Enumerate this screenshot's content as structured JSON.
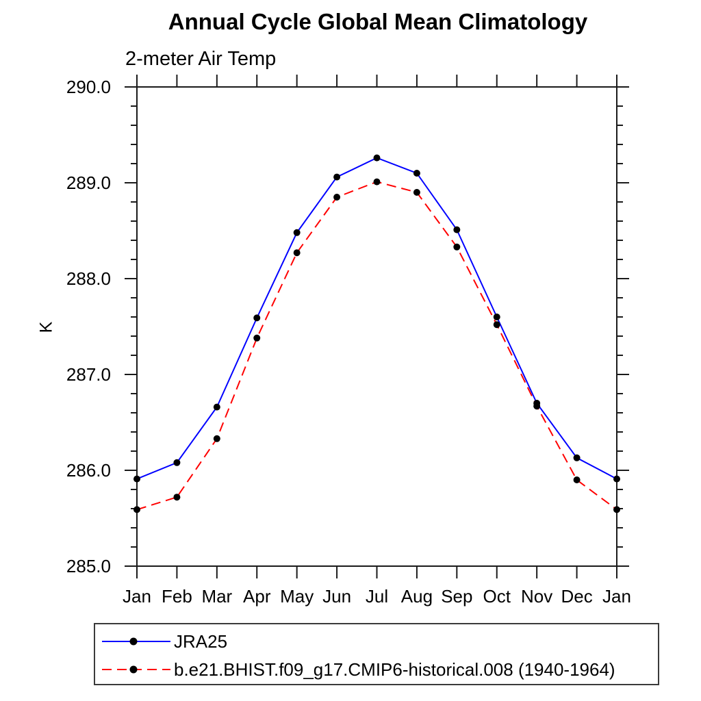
{
  "accent_colors": {
    "series1": "#0000ff",
    "series2": "#ff0000",
    "marker": "#000000",
    "axis": "#1a1a1a"
  },
  "chart_data": {
    "type": "line",
    "title": "Annual Cycle Global Mean Climatology",
    "subtitle": "2-meter Air Temp",
    "xlabel": "",
    "ylabel": "K",
    "categories": [
      "Jan",
      "Feb",
      "Mar",
      "Apr",
      "May",
      "Jun",
      "Jul",
      "Aug",
      "Sep",
      "Oct",
      "Nov",
      "Dec",
      "Jan"
    ],
    "ylim": [
      285.0,
      290.0
    ],
    "ytick_major_step": 1.0,
    "ytick_minor_step": 0.2,
    "ytick_labels": [
      "290.0",
      "289.0",
      "288.0",
      "287.0",
      "286.0",
      "285.0"
    ],
    "grid": false,
    "tick_direction": "out",
    "legend_position": "bottom-left",
    "series": [
      {
        "name": "JRA25",
        "color": "#0000ff",
        "style": "solid",
        "marker": "circle",
        "marker_color": "#000000",
        "values": [
          285.91,
          286.08,
          286.66,
          287.59,
          288.48,
          289.06,
          289.26,
          289.1,
          288.51,
          287.6,
          286.7,
          286.13,
          285.91
        ]
      },
      {
        "name": "b.e21.BHIST.f09_g17.CMIP6-historical.008 (1940-1964)",
        "color": "#ff0000",
        "style": "dashed",
        "marker": "circle",
        "marker_color": "#000000",
        "values": [
          285.59,
          285.72,
          286.33,
          287.38,
          288.27,
          288.85,
          289.01,
          288.9,
          288.33,
          287.52,
          286.67,
          285.9,
          285.59
        ]
      }
    ]
  }
}
